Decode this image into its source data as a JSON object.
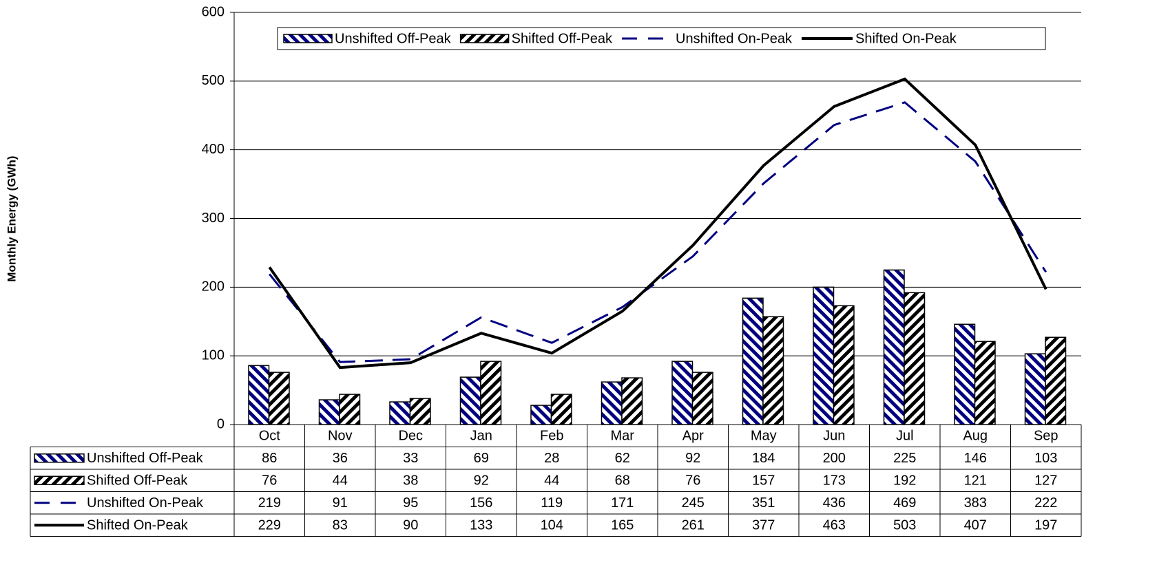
{
  "chart_data": {
    "type": "bar-line",
    "ylabel": "Monthly Energy (GWh)",
    "categories": [
      "Oct",
      "Nov",
      "Dec",
      "Jan",
      "Feb",
      "Mar",
      "Apr",
      "May",
      "Jun",
      "Jul",
      "Aug",
      "Sep"
    ],
    "series": [
      {
        "name": "Unshifted Off-Peak",
        "type": "bar",
        "color": "#000080",
        "values": [
          86,
          36,
          33,
          69,
          28,
          62,
          92,
          184,
          200,
          225,
          146,
          103
        ]
      },
      {
        "name": "Shifted Off-Peak",
        "type": "bar",
        "color": "#000000",
        "values": [
          76,
          44,
          38,
          92,
          44,
          68,
          76,
          157,
          173,
          192,
          121,
          127
        ]
      },
      {
        "name": "Unshifted On-Peak",
        "type": "line",
        "dash": true,
        "color": "#000080",
        "values": [
          219,
          91,
          95,
          156,
          119,
          171,
          245,
          351,
          436,
          469,
          383,
          222
        ]
      },
      {
        "name": "Shifted On-Peak",
        "type": "line",
        "dash": false,
        "color": "#000000",
        "values": [
          229,
          83,
          90,
          133,
          104,
          165,
          261,
          377,
          463,
          503,
          407,
          197
        ]
      }
    ],
    "ylim": [
      0,
      600
    ],
    "yticks": [
      0,
      100,
      200,
      300,
      400,
      500,
      600
    ],
    "grid": true,
    "legend": "top"
  }
}
